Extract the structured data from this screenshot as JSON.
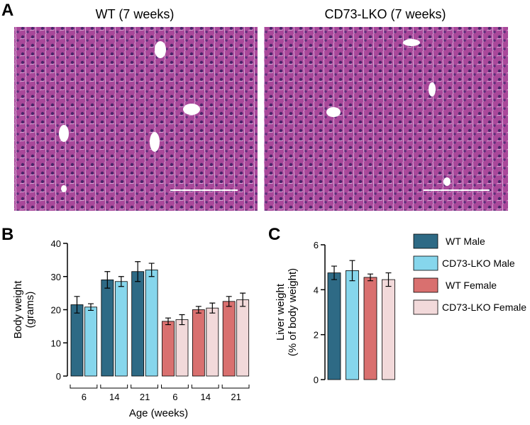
{
  "panel_labels": [
    "A",
    "B",
    "C"
  ],
  "images": [
    {
      "title": "WT (7 weeks)"
    },
    {
      "title": "CD73-LKO (7 weeks)"
    }
  ],
  "chart_data": [
    {
      "type": "bar",
      "ylabel": [
        "Body weight",
        "(grams)"
      ],
      "xlabel": "Age (weeks)",
      "categories": [
        "6",
        "14",
        "21",
        "6",
        "14",
        "21"
      ],
      "series": [
        {
          "color": "#2e6a85",
          "values": [
            21.5,
            29,
            31.5,
            null,
            null,
            null
          ],
          "errors": [
            2.5,
            2.5,
            3,
            null,
            null,
            null
          ]
        },
        {
          "color": "#86d6ec",
          "values": [
            20.8,
            28.5,
            32,
            null,
            null,
            null
          ],
          "errors": [
            1,
            1.5,
            2,
            null,
            null,
            null
          ]
        },
        {
          "color": "#d9706f",
          "values": [
            null,
            null,
            null,
            16.5,
            20,
            22.5
          ],
          "errors": [
            null,
            null,
            null,
            1,
            1,
            1.5
          ]
        },
        {
          "color": "#f2d9da",
          "values": [
            null,
            null,
            null,
            17,
            20.5,
            23
          ],
          "errors": [
            null,
            null,
            null,
            1.5,
            1.5,
            2
          ]
        }
      ],
      "ylim": [
        0,
        40
      ],
      "yticks": [
        0,
        10,
        20,
        30,
        40
      ]
    },
    {
      "type": "bar",
      "ylabel": [
        "Liver weight",
        "(% of body weight)"
      ],
      "series": [
        {
          "name": "WT Male",
          "color": "#2e6a85",
          "values": [
            4.75
          ],
          "errors": [
            0.3
          ]
        },
        {
          "name": "CD73-LKO Male",
          "color": "#86d6ec",
          "values": [
            4.85
          ],
          "errors": [
            0.45
          ]
        },
        {
          "name": "WT Female",
          "color": "#d9706f",
          "values": [
            4.55
          ],
          "errors": [
            0.15
          ]
        },
        {
          "name": "CD73-LKO Female",
          "color": "#f2d9da",
          "values": [
            4.45
          ],
          "errors": [
            0.3
          ]
        }
      ],
      "ylim": [
        0,
        6
      ],
      "yticks": [
        0,
        2,
        4,
        6
      ],
      "legend": "right"
    }
  ]
}
